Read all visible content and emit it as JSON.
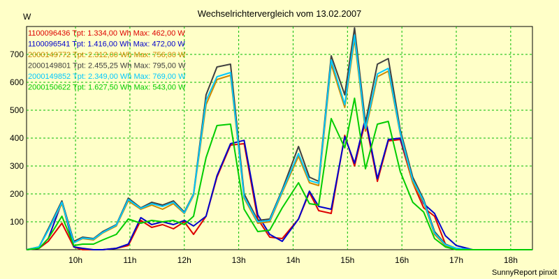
{
  "chart_data": {
    "type": "line",
    "title": "Wechselrichtervergleich vom 13.02.2007",
    "ylabel": "W",
    "xlabel": "",
    "footer": "SunnyReport pinxit",
    "ylim": [
      0,
      800
    ],
    "xlim": [
      9.1,
      18.4
    ],
    "grid": true,
    "legend_position": "top-left",
    "yticks": [
      100,
      200,
      300,
      400,
      500,
      600,
      700
    ],
    "xticks": [
      {
        "value": 10,
        "label": "10h"
      },
      {
        "value": 11,
        "label": "11h"
      },
      {
        "value": 12,
        "label": "12h"
      },
      {
        "value": 13,
        "label": "13h"
      },
      {
        "value": 14,
        "label": "14h"
      },
      {
        "value": 15,
        "label": "15h"
      },
      {
        "value": 16,
        "label": "16h"
      },
      {
        "value": 17,
        "label": "17h"
      },
      {
        "value": 18,
        "label": "18h"
      }
    ],
    "x": [
      9.1,
      9.33,
      9.5,
      9.75,
      9.97,
      10.13,
      10.33,
      10.5,
      10.75,
      10.97,
      11.2,
      11.4,
      11.6,
      11.8,
      12.0,
      12.17,
      12.4,
      12.6,
      12.85,
      13.1,
      13.35,
      13.57,
      13.8,
      14.1,
      14.3,
      14.47,
      14.7,
      14.95,
      15.13,
      15.33,
      15.55,
      15.75,
      15.97,
      16.2,
      16.4,
      16.6,
      16.8,
      17.0,
      17.3,
      17.55,
      17.8,
      18.0,
      18.2,
      18.4
    ],
    "series": [
      {
        "name": "1100096436 Tpt: 1.334,00 Wh Max: 462,00 W",
        "color": "#dd0000",
        "values": [
          0,
          5,
          30,
          95,
          10,
          0,
          0,
          0,
          5,
          15,
          105,
          80,
          90,
          75,
          100,
          55,
          120,
          260,
          375,
          380,
          110,
          45,
          40,
          110,
          205,
          140,
          130,
          410,
          300,
          462,
          245,
          390,
          395,
          240,
          150,
          120,
          20,
          0,
          0,
          0,
          0,
          0,
          0,
          0
        ]
      },
      {
        "name": "1100096541 Tpt: 1.416,00 Wh Max: 472,00 W",
        "color": "#0000cc",
        "values": [
          0,
          5,
          40,
          170,
          10,
          5,
          0,
          0,
          5,
          20,
          115,
          90,
          100,
          90,
          105,
          85,
          120,
          265,
          380,
          392,
          125,
          55,
          30,
          110,
          210,
          155,
          145,
          405,
          310,
          472,
          255,
          395,
          400,
          250,
          165,
          130,
          50,
          15,
          0,
          0,
          0,
          0,
          0,
          0
        ]
      },
      {
        "name": "2000149772 Tpt: 2.312,00 Wh Max: 756,00 W",
        "color": "#cc8800",
        "values": [
          0,
          10,
          70,
          165,
          25,
          40,
          35,
          60,
          85,
          175,
          145,
          160,
          145,
          165,
          130,
          195,
          520,
          610,
          625,
          185,
          95,
          100,
          205,
          335,
          240,
          230,
          665,
          510,
          755,
          425,
          620,
          640,
          415,
          240,
          170,
          55,
          15,
          5,
          0,
          0,
          0,
          0,
          0,
          0
        ]
      },
      {
        "name": "2000149801 Tpt: 2.455,25 Wh Max: 795,00 W",
        "color": "#404040",
        "values": [
          0,
          10,
          75,
          175,
          30,
          45,
          40,
          65,
          90,
          185,
          150,
          170,
          160,
          175,
          135,
          200,
          555,
          655,
          665,
          200,
          105,
          110,
          215,
          370,
          260,
          245,
          695,
          555,
          795,
          455,
          665,
          685,
          430,
          260,
          180,
          65,
          20,
          5,
          0,
          0,
          0,
          0,
          0,
          0
        ]
      },
      {
        "name": "2000149852 Tpt: 2.349,00 Wh Max: 769,00 W",
        "color": "#00c8ff",
        "values": [
          0,
          10,
          70,
          170,
          25,
          42,
          38,
          62,
          88,
          180,
          148,
          165,
          155,
          170,
          132,
          198,
          535,
          620,
          635,
          190,
          100,
          105,
          210,
          345,
          248,
          238,
          680,
          520,
          769,
          435,
          630,
          650,
          420,
          250,
          175,
          60,
          18,
          5,
          0,
          0,
          0,
          0,
          0,
          0
        ]
      },
      {
        "name": "2000150622 Tpt: 1.627,50 Wh Max: 543,00 W",
        "color": "#00cc00",
        "values": [
          0,
          5,
          40,
          120,
          15,
          20,
          20,
          35,
          55,
          110,
          95,
          105,
          100,
          105,
          90,
          120,
          330,
          445,
          450,
          145,
          65,
          70,
          150,
          240,
          165,
          160,
          470,
          365,
          543,
          290,
          450,
          460,
          280,
          170,
          135,
          40,
          10,
          0,
          0,
          0,
          0,
          0,
          0,
          0
        ]
      }
    ]
  }
}
